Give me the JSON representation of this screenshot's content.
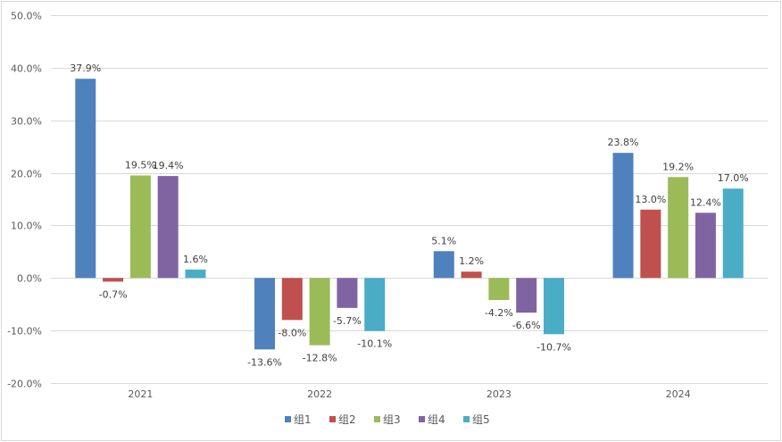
{
  "chart_data": {
    "type": "bar",
    "categories": [
      "2021",
      "2022",
      "2023",
      "2024"
    ],
    "series": [
      {
        "name": "组1",
        "color": "#4f81bd",
        "values": [
          37.9,
          -13.6,
          5.1,
          23.8
        ],
        "labels": [
          "37.9%",
          "-13.6%",
          "5.1%",
          "23.8%"
        ]
      },
      {
        "name": "组2",
        "color": "#c0504d",
        "values": [
          -0.7,
          -8.0,
          1.2,
          13.0
        ],
        "labels": [
          "-0.7%",
          "-8.0%",
          "1.2%",
          "13.0%"
        ]
      },
      {
        "name": "组3",
        "color": "#9bbb59",
        "values": [
          19.5,
          -12.8,
          -4.2,
          19.2
        ],
        "labels": [
          "19.5%",
          "-12.8%",
          "-4.2%",
          "19.2%"
        ]
      },
      {
        "name": "组4",
        "color": "#8064a2",
        "values": [
          19.4,
          -5.7,
          -6.6,
          12.4
        ],
        "labels": [
          "19.4%",
          "-5.7%",
          "-6.6%",
          "12.4%"
        ]
      },
      {
        "name": "组5",
        "color": "#4bacc6",
        "values": [
          1.6,
          -10.1,
          -10.7,
          17.0
        ],
        "labels": [
          "1.6%",
          "-10.1%",
          "-10.7%",
          "17.0%"
        ]
      }
    ],
    "yticks": [
      50,
      40,
      30,
      20,
      10,
      0,
      -10,
      -20
    ],
    "ytick_labels": [
      "50.0%",
      "40.0%",
      "30.0%",
      "20.0%",
      "10.0%",
      "0.0%",
      "-10.0%",
      "-20.0%"
    ],
    "ylim": [
      -20,
      50
    ],
    "grid": true,
    "legend_position": "bottom",
    "title": "",
    "xlabel": "",
    "ylabel": ""
  }
}
